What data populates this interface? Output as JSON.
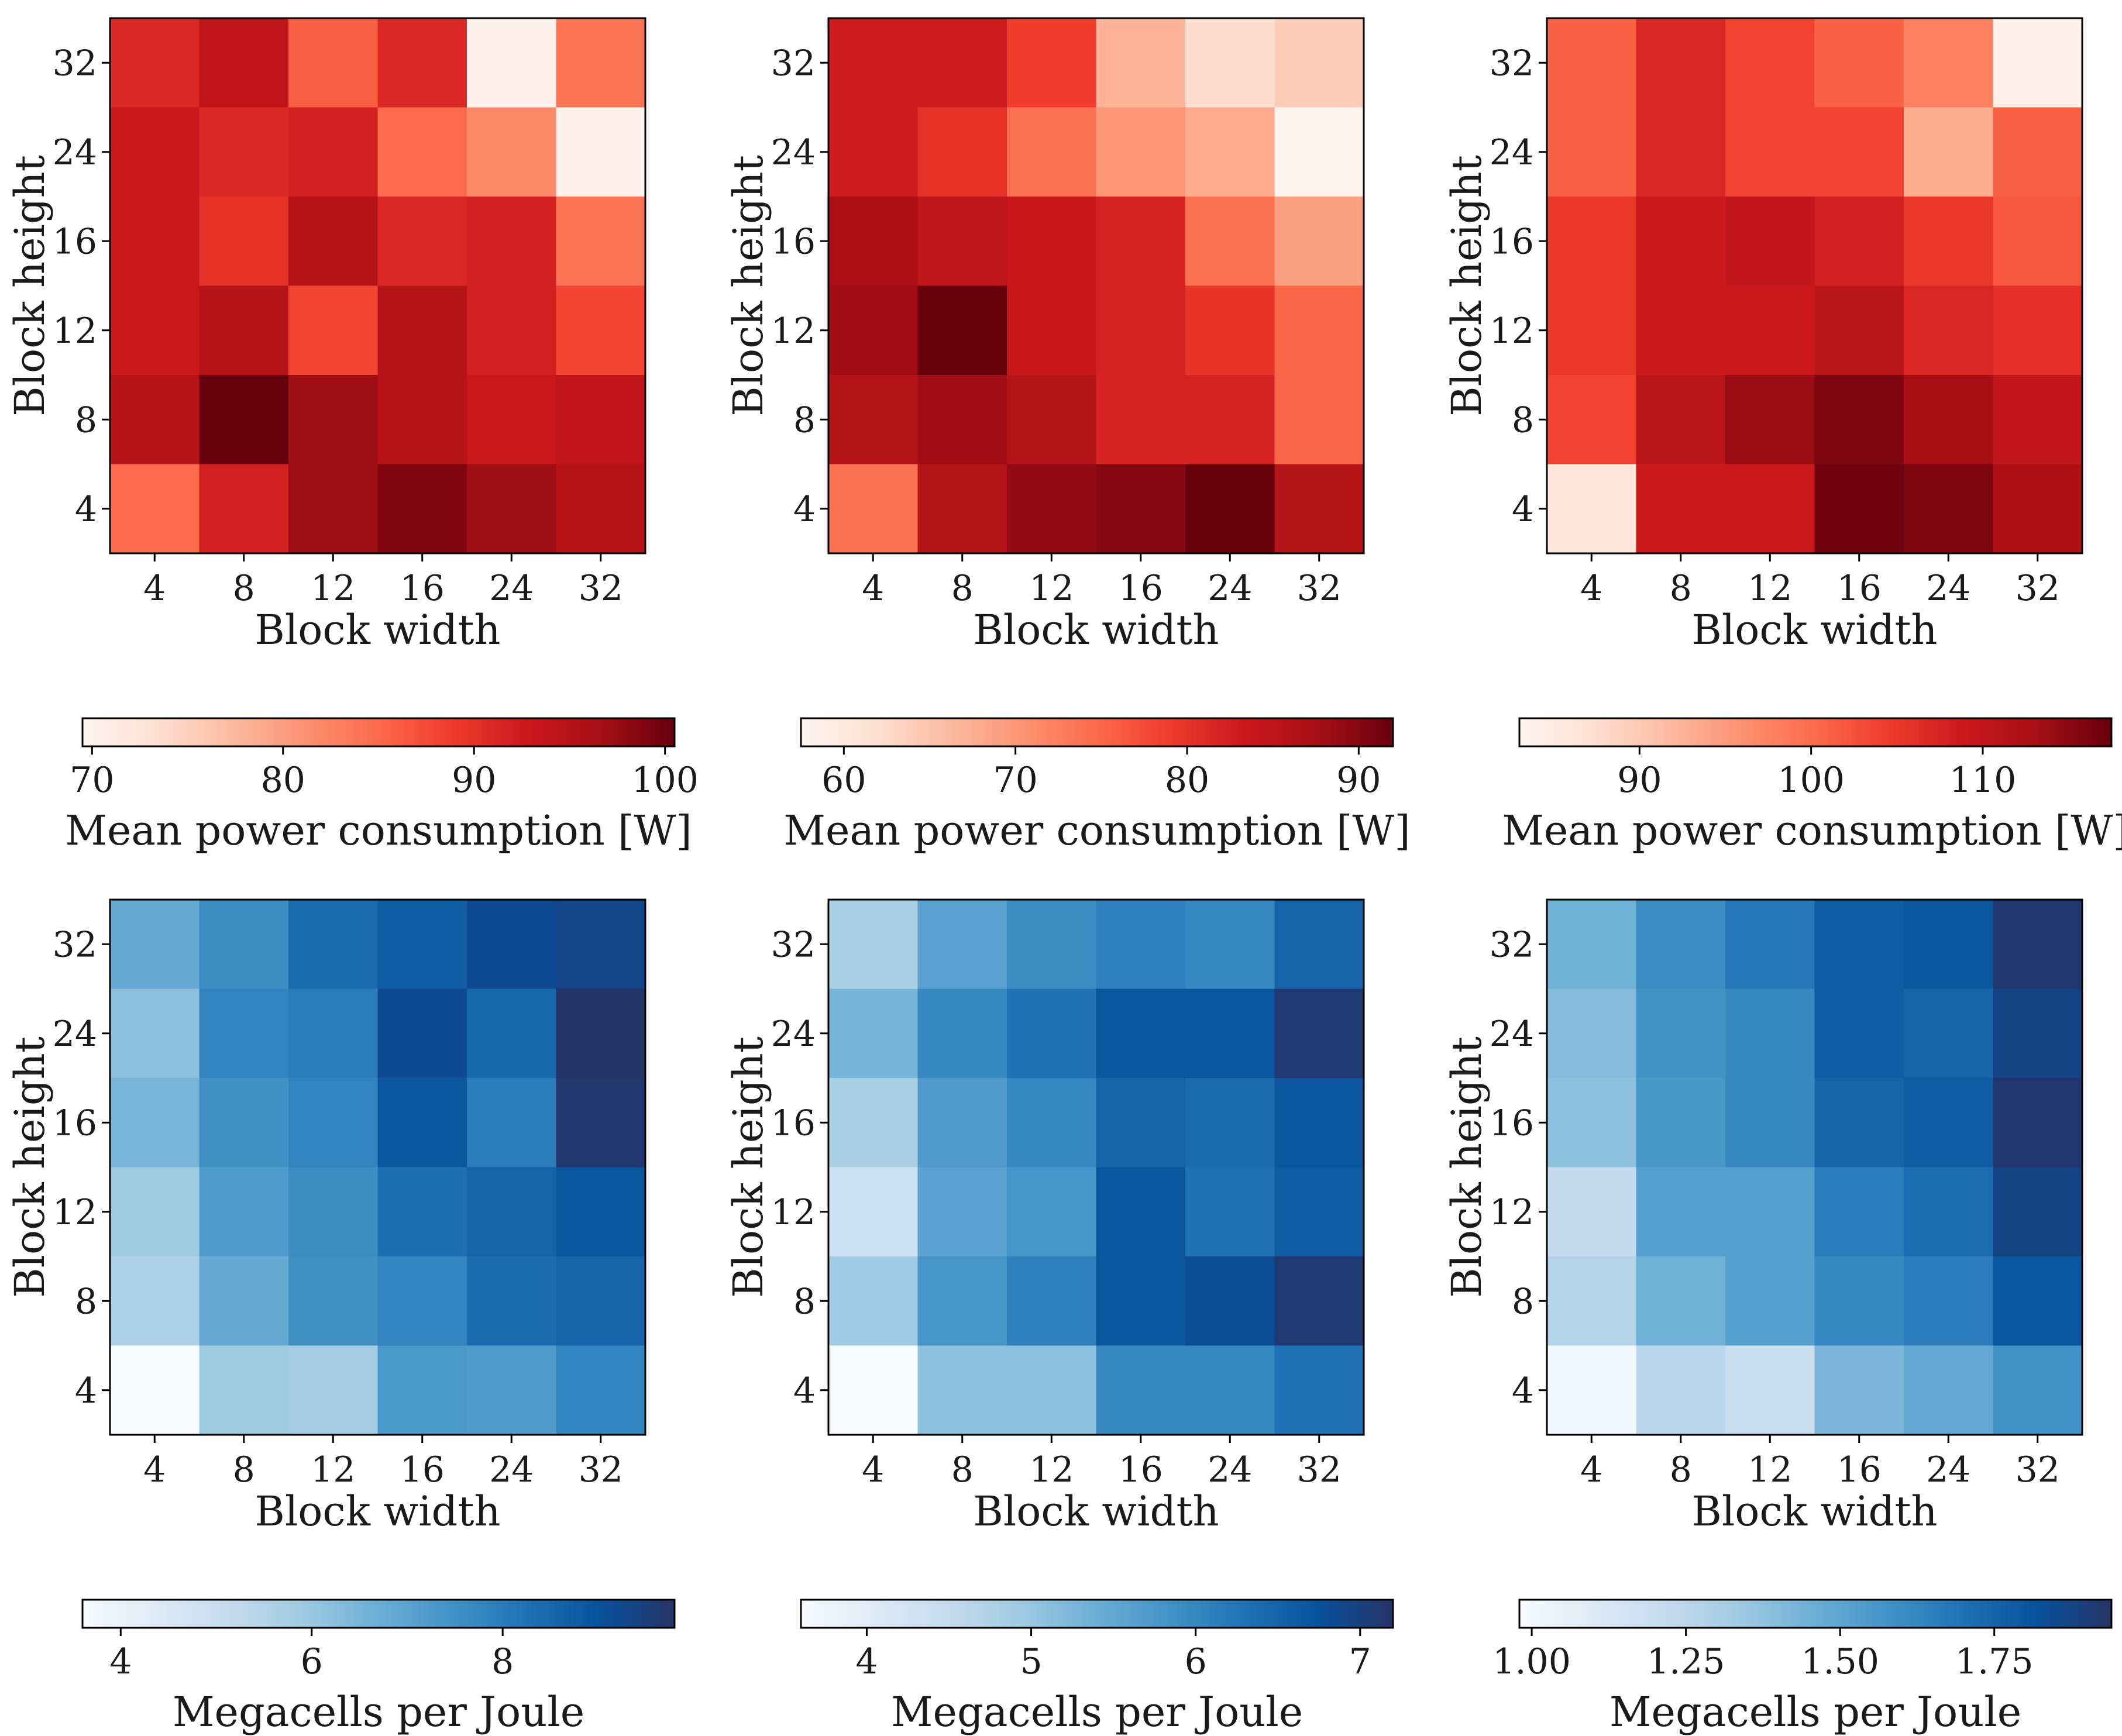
{
  "colors": {
    "power_cmap": [
      "#fff5f0",
      "#fee0d2",
      "#fcbba1",
      "#fc9272",
      "#fb6a4a",
      "#ef3b2c",
      "#cb181d",
      "#a50f15",
      "#67000d"
    ],
    "efficiency_cmap": [
      "#f7fbff",
      "#deebf7",
      "#c6dbef",
      "#9ecae1",
      "#6baed6",
      "#4292c6",
      "#2171b5",
      "#08519c",
      "#263366"
    ]
  },
  "chart_data": [
    {
      "type": "heatmap",
      "panel": "top-left",
      "xlabel": "Block width",
      "ylabel": "Block height",
      "x_categories": [
        "4",
        "8",
        "12",
        "16",
        "24",
        "32"
      ],
      "y_categories": [
        "4",
        "8",
        "12",
        "16",
        "24",
        "32"
      ],
      "values_rows_from_top": [
        [
          91,
          94,
          86,
          91,
          70,
          84
        ],
        [
          93,
          91,
          92,
          85,
          82,
          70
        ],
        [
          93,
          90,
          95,
          91,
          92,
          84
        ],
        [
          93,
          95,
          88,
          95,
          92,
          88
        ],
        [
          95,
          101,
          97,
          95,
          93,
          94
        ],
        [
          85,
          92,
          97,
          99,
          97,
          95
        ]
      ],
      "colorbar": {
        "label": "Mean power consumption [W]",
        "min": 69.5,
        "max": 100.5,
        "ticks": [
          "70",
          "80",
          "90",
          "100"
        ],
        "tick_values": [
          70,
          80,
          90,
          100
        ],
        "cmap": "power_cmap"
      }
    },
    {
      "type": "heatmap",
      "panel": "top-middle",
      "xlabel": "Block width",
      "ylabel": "Block height",
      "x_categories": [
        "4",
        "8",
        "12",
        "16",
        "24",
        "32"
      ],
      "y_categories": [
        "4",
        "8",
        "12",
        "16",
        "24",
        "32"
      ],
      "values_rows_from_top": [
        [
          83,
          83,
          79,
          67,
          62,
          64
        ],
        [
          83,
          80,
          74,
          70,
          68,
          57
        ],
        [
          87,
          85,
          84,
          82,
          74,
          69
        ],
        [
          88,
          92,
          84,
          82,
          80,
          75
        ],
        [
          86,
          88,
          86,
          82,
          82,
          75
        ],
        [
          74,
          86,
          89,
          90,
          92,
          86
        ]
      ],
      "colorbar": {
        "label": "Mean power consumption [W]",
        "min": 57.5,
        "max": 92.0,
        "ticks": [
          "60",
          "70",
          "80",
          "90"
        ],
        "tick_values": [
          60,
          70,
          80,
          90
        ],
        "cmap": "power_cmap"
      }
    },
    {
      "type": "heatmap",
      "panel": "top-right",
      "xlabel": "Block width",
      "ylabel": "Block height",
      "x_categories": [
        "4",
        "8",
        "12",
        "16",
        "24",
        "32"
      ],
      "y_categories": [
        "4",
        "8",
        "12",
        "16",
        "24",
        "32"
      ],
      "values_rows_from_top": [
        [
          101,
          107,
          104,
          101,
          98,
          84
        ],
        [
          101,
          107,
          104,
          104,
          93,
          101
        ],
        [
          105,
          109,
          110,
          108,
          105,
          102
        ],
        [
          105,
          109,
          109,
          111,
          107,
          106
        ],
        [
          104,
          111,
          114,
          116,
          113,
          110
        ],
        [
          86,
          109,
          109,
          117,
          116,
          112
        ]
      ],
      "colorbar": {
        "label": "Mean power consumption [W]",
        "min": 83.0,
        "max": 117.5,
        "ticks": [
          "90",
          "100",
          "110"
        ],
        "tick_values": [
          90,
          100,
          110
        ],
        "cmap": "power_cmap"
      }
    },
    {
      "type": "heatmap",
      "panel": "bottom-left",
      "xlabel": "Block width",
      "ylabel": "Block height",
      "x_categories": [
        "4",
        "8",
        "12",
        "16",
        "24",
        "32"
      ],
      "y_categories": [
        "4",
        "8",
        "12",
        "16",
        "24",
        "32"
      ],
      "values_rows_from_top": [
        [
          6.8,
          7.6,
          8.4,
          8.7,
          9.2,
          9.3
        ],
        [
          6.2,
          7.8,
          8.0,
          9.2,
          8.5,
          9.8
        ],
        [
          6.5,
          7.5,
          7.8,
          8.9,
          8.0,
          9.7
        ],
        [
          5.9,
          7.2,
          7.6,
          8.3,
          8.6,
          8.9
        ],
        [
          5.6,
          6.8,
          7.5,
          7.8,
          8.4,
          8.6
        ],
        [
          3.6,
          5.9,
          5.8,
          7.3,
          7.2,
          7.8
        ]
      ],
      "colorbar": {
        "label": "Megacells per Joule",
        "min": 3.6,
        "max": 9.8,
        "ticks": [
          "4",
          "6",
          "8"
        ],
        "tick_values": [
          4,
          6,
          8
        ],
        "cmap": "efficiency_cmap"
      }
    },
    {
      "type": "heatmap",
      "panel": "bottom-middle",
      "xlabel": "Block width",
      "ylabel": "Block height",
      "x_categories": [
        "4",
        "8",
        "12",
        "16",
        "24",
        "32"
      ],
      "y_categories": [
        "4",
        "8",
        "12",
        "16",
        "24",
        "32"
      ],
      "values_rows_from_top": [
        [
          4.8,
          5.6,
          5.9,
          6.1,
          6.0,
          6.5
        ],
        [
          5.3,
          6.0,
          6.3,
          6.7,
          6.7,
          7.1
        ],
        [
          4.8,
          5.7,
          6.0,
          6.5,
          6.4,
          6.7
        ],
        [
          4.4,
          5.6,
          5.8,
          6.7,
          6.3,
          6.6
        ],
        [
          4.9,
          5.8,
          6.1,
          6.7,
          6.8,
          7.1
        ],
        [
          3.6,
          5.1,
          5.1,
          6.0,
          6.0,
          6.3
        ]
      ],
      "colorbar": {
        "label": "Megacells per Joule",
        "min": 3.6,
        "max": 7.2,
        "ticks": [
          "4",
          "5",
          "6",
          "7"
        ],
        "tick_values": [
          4,
          5,
          6,
          7
        ],
        "cmap": "efficiency_cmap"
      }
    },
    {
      "type": "heatmap",
      "panel": "bottom-right",
      "xlabel": "Block width",
      "ylabel": "Block height",
      "x_categories": [
        "4",
        "8",
        "12",
        "16",
        "24",
        "32"
      ],
      "y_categories": [
        "4",
        "8",
        "12",
        "16",
        "24",
        "32"
      ],
      "values_rows_from_top": [
        [
          1.45,
          1.6,
          1.68,
          1.78,
          1.8,
          1.92
        ],
        [
          1.4,
          1.58,
          1.62,
          1.78,
          1.75,
          1.88
        ],
        [
          1.38,
          1.56,
          1.62,
          1.75,
          1.78,
          1.92
        ],
        [
          1.22,
          1.52,
          1.52,
          1.66,
          1.72,
          1.88
        ],
        [
          1.28,
          1.45,
          1.52,
          1.62,
          1.66,
          1.8
        ],
        [
          1.0,
          1.25,
          1.2,
          1.42,
          1.48,
          1.58
        ]
      ],
      "colorbar": {
        "label": "Megacells per Joule",
        "min": 0.98,
        "max": 1.94,
        "ticks": [
          "1.00",
          "1.25",
          "1.50",
          "1.75"
        ],
        "tick_values": [
          1.0,
          1.25,
          1.5,
          1.75
        ],
        "cmap": "efficiency_cmap"
      }
    }
  ]
}
